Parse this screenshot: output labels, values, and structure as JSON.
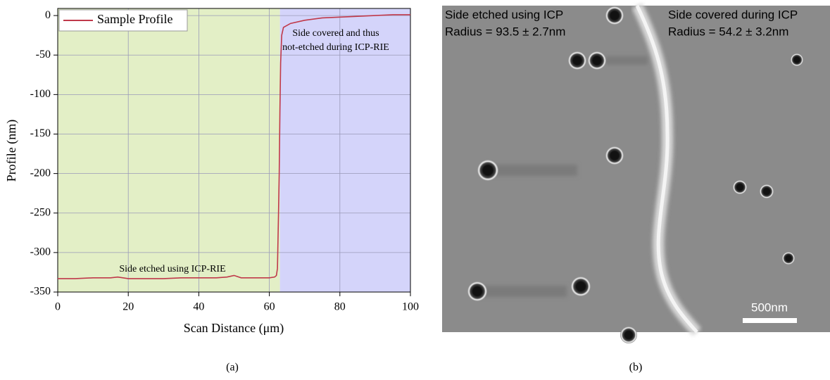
{
  "chart_data": {
    "type": "line",
    "xlabel": "Scan Distance (μm)",
    "ylabel": "Profile (nm)",
    "x": [
      0,
      5,
      10,
      15,
      17,
      20,
      25,
      30,
      35,
      40,
      45,
      48,
      50,
      52,
      55,
      60,
      61.5,
      62,
      62.3,
      62.6,
      62.8,
      63,
      63.2,
      63.5,
      64,
      66,
      70,
      75,
      80,
      85,
      90,
      95,
      100
    ],
    "series": [
      {
        "name": "Sample Profile",
        "color": "#c0394a",
        "values": [
          -333,
          -333,
          -332,
          -332,
          -331,
          -333,
          -333,
          -333,
          -332,
          -332,
          -332,
          -331,
          -329,
          -332,
          -332,
          -332,
          -331,
          -329,
          -320,
          -250,
          -200,
          -120,
          -60,
          -25,
          -15,
          -10,
          -6,
          -3,
          -2,
          -1,
          0,
          1,
          1
        ]
      }
    ],
    "regions": [
      {
        "xlim": [
          0,
          63
        ],
        "color": "#e3efc6"
      },
      {
        "xlim": [
          63,
          100
        ],
        "color": "#d4d4fa"
      }
    ],
    "annotations": [
      [
        "Side etched using ICP-RIE"
      ],
      [
        "Side covered and thus",
        "not-etched during ICP-RIE"
      ]
    ],
    "xlim": [
      0,
      100
    ],
    "xticks": [
      0,
      20,
      40,
      60,
      80,
      100
    ],
    "ylim": [
      -350,
      9
    ],
    "yticks": [
      0,
      -50,
      -100,
      -150,
      -200,
      -250,
      -300,
      -350
    ],
    "grid": true,
    "legend": "upper left"
  },
  "image": {
    "left_title": "Side etched using  ICP",
    "left_radius": "Radius = 93.5 ± 2.7nm",
    "right_title": "Side covered during ICP",
    "right_radius": "Radius = 54.2 ± 3.2nm",
    "scale_bar": "500nm"
  },
  "captions": [
    "(a)",
    "(b)"
  ]
}
